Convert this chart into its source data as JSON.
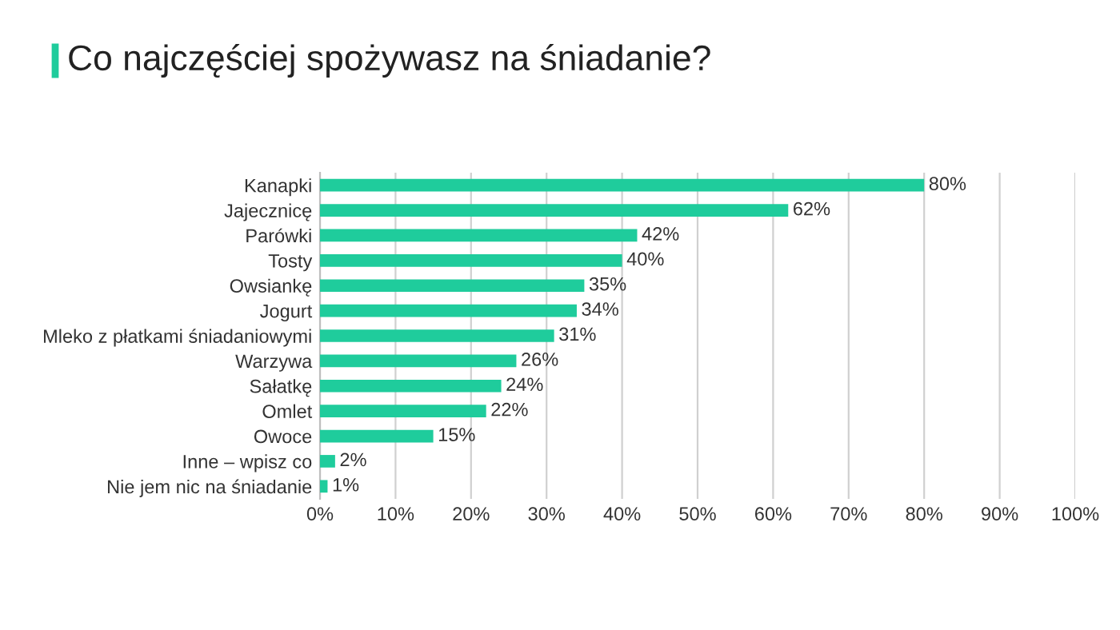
{
  "chart_data": {
    "type": "bar",
    "orientation": "horizontal",
    "title": "Co najczęściej spożywasz na śniadanie?",
    "categories": [
      "Kanapki",
      "Jajecznicę",
      "Parówki",
      "Tosty",
      "Owsiankę",
      "Jogurt",
      "Mleko z płatkami śniadaniowymi",
      "Warzywa",
      "Sałatkę",
      "Omlet",
      "Owoce",
      "Inne – wpisz co",
      "Nie jem nic na śniadanie"
    ],
    "values": [
      80,
      62,
      42,
      40,
      35,
      34,
      31,
      26,
      24,
      22,
      15,
      2,
      1
    ],
    "value_labels": [
      "80%",
      "62%",
      "42%",
      "40%",
      "35%",
      "34%",
      "31%",
      "26%",
      "24%",
      "22%",
      "15%",
      "2%",
      "1%"
    ],
    "color": "#1fcc9c",
    "xlim": [
      0,
      100
    ],
    "xticks": [
      {
        "value": 0,
        "label": "0%"
      },
      {
        "value": 10,
        "label": "10%"
      },
      {
        "value": 20,
        "label": "20%"
      },
      {
        "value": 30,
        "label": "30%"
      },
      {
        "value": 40,
        "label": "40%"
      },
      {
        "value": 50,
        "label": "50%"
      },
      {
        "value": 60,
        "label": "60%"
      },
      {
        "value": 70,
        "label": "70%"
      },
      {
        "value": 80,
        "label": "80%"
      },
      {
        "value": 90,
        "label": "90%"
      },
      {
        "value": 100,
        "label": "100%"
      }
    ],
    "grid": "x",
    "legend": false
  }
}
